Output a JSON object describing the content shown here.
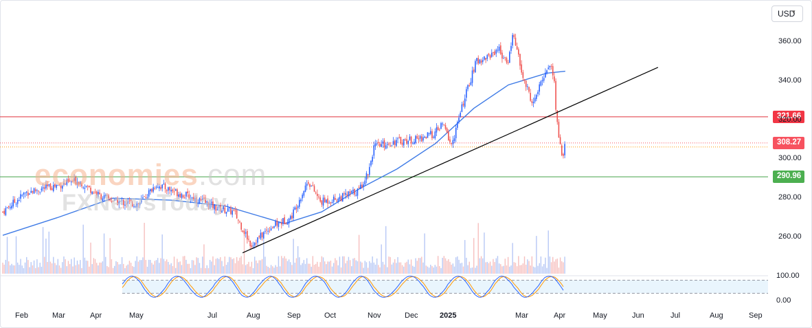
{
  "currency_selector": {
    "label": "USD"
  },
  "watermark": {
    "line1": "economies",
    "line1_suffix": ".com",
    "line2": "FXNewsToday"
  },
  "colors": {
    "up": "#2962ff",
    "down": "#ef5350",
    "ma": "#3f7be6",
    "resistance": "#e0313a",
    "support": "#43a047",
    "trendline": "#000000",
    "stoch_k": "#2962ff",
    "stoch_d": "#ff9800"
  },
  "price_labels": [
    {
      "text": "321.66",
      "color": "#f23645"
    },
    {
      "text": "308.27",
      "color": "#f7525f"
    },
    {
      "text": "290.96",
      "color": "#4caf50"
    }
  ],
  "chart_data": [
    {
      "type": "candlestick",
      "title": "",
      "y_axis_ticks": [
        "360.00",
        "340.00",
        "320.00",
        "300.00",
        "280.00",
        "260.00"
      ],
      "ylim": [
        251,
        378
      ],
      "x_axis_ticks": [
        "Feb",
        "Mar",
        "Apr",
        "May",
        "Jul",
        "Aug",
        "Sep",
        "Oct",
        "Nov",
        "Dec",
        "2025",
        "Mar",
        "Apr",
        "May",
        "Jun",
        "Jul",
        "Aug",
        "Sep"
      ],
      "series": [
        {
          "kind": "close_path",
          "points": [
            [
              "2024-01-17",
              273
            ],
            [
              "2024-02-05",
              283
            ],
            [
              "2024-02-26",
              286
            ],
            [
              "2024-03-18",
              289
            ],
            [
              "2024-04-05",
              281
            ],
            [
              "2024-04-19",
              278
            ],
            [
              "2024-05-06",
              277
            ],
            [
              "2024-05-20",
              287
            ],
            [
              "2024-06-10",
              282
            ],
            [
              "2024-06-28",
              278
            ],
            [
              "2024-07-08",
              275
            ],
            [
              "2024-07-22",
              273
            ],
            [
              "2024-08-05",
              256
            ],
            [
              "2024-08-20",
              265
            ],
            [
              "2024-09-06",
              270
            ],
            [
              "2024-09-20",
              289
            ],
            [
              "2024-09-30",
              278
            ],
            [
              "2024-10-15",
              280
            ],
            [
              "2024-10-31",
              284
            ],
            [
              "2024-11-08",
              294
            ],
            [
              "2024-11-12",
              306
            ],
            [
              "2024-11-29",
              309
            ],
            [
              "2024-12-16",
              310
            ],
            [
              "2024-12-31",
              313
            ],
            [
              "2025-01-07",
              318
            ],
            [
              "2025-01-14",
              307
            ],
            [
              "2025-01-24",
              330
            ],
            [
              "2025-02-03",
              350
            ],
            [
              "2025-02-14",
              353
            ],
            [
              "2025-02-21",
              357
            ],
            [
              "2025-02-28",
              348
            ],
            [
              "2025-03-05",
              365
            ],
            [
              "2025-03-12",
              343
            ],
            [
              "2025-03-21",
              328
            ],
            [
              "2025-03-31",
              345
            ],
            [
              "2025-04-04",
              349
            ],
            [
              "2025-04-07",
              340
            ],
            [
              "2025-04-09",
              320
            ],
            [
              "2025-04-11",
              311
            ],
            [
              "2025-04-14",
              300
            ],
            [
              "2025-04-16",
              308
            ]
          ]
        },
        {
          "kind": "moving_average",
          "points": [
            [
              "2024-01-17",
              261
            ],
            [
              "2024-03-01",
              270
            ],
            [
              "2024-04-15",
              280
            ],
            [
              "2024-06-01",
              279
            ],
            [
              "2024-07-15",
              276
            ],
            [
              "2024-09-01",
              267
            ],
            [
              "2024-10-01",
              273
            ],
            [
              "2024-11-01",
              285
            ],
            [
              "2024-12-01",
              295
            ],
            [
              "2025-01-01",
              308
            ],
            [
              "2025-02-01",
              326
            ],
            [
              "2025-03-01",
              338
            ],
            [
              "2025-04-01",
              344
            ],
            [
              "2025-04-16",
              345
            ]
          ]
        },
        {
          "kind": "trendline",
          "points": [
            [
              "2024-07-29",
              252
            ],
            [
              "2025-06-30",
              347
            ]
          ]
        }
      ],
      "horizontal_lines": [
        {
          "value": 321.66,
          "style": "solid",
          "color": "#e0313a"
        },
        {
          "value": 308.27,
          "style": "dotted",
          "color": "#f7525f"
        },
        {
          "value": 306.2,
          "style": "dotted",
          "color": "#ff9800"
        },
        {
          "value": 290.96,
          "style": "solid",
          "color": "#43a047"
        }
      ]
    },
    {
      "type": "stochastic",
      "y_axis_ticks": [
        "100.00",
        "0.00"
      ],
      "ylim": [
        0,
        100
      ],
      "bands": [
        80,
        20
      ]
    }
  ]
}
